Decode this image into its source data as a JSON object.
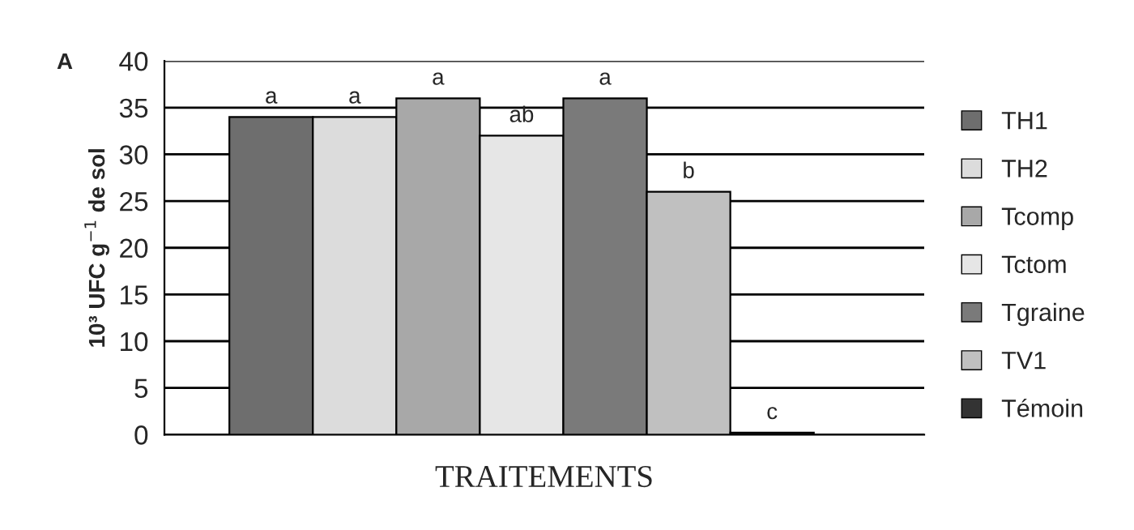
{
  "chart_data": {
    "type": "bar",
    "xlabel": "TRAITEMENTS",
    "ylabel": "10³ UFC g$^{−1}$ de sol",
    "annotations": [
      "A"
    ],
    "categories": [
      null
    ],
    "series": [
      {
        "name": "TH1",
        "color": "#6e6e6e",
        "values": [
          34
        ],
        "value_labels": [
          "a"
        ]
      },
      {
        "name": "TH2",
        "color": "#dcdcdc",
        "values": [
          34
        ],
        "value_labels": [
          "a"
        ]
      },
      {
        "name": "Tcomp",
        "color": "#a8a8a8",
        "values": [
          36
        ],
        "value_labels": [
          "a"
        ]
      },
      {
        "name": "Tctom",
        "color": "#e6e6e6",
        "values": [
          32
        ],
        "value_labels": [
          "ab"
        ]
      },
      {
        "name": "Tgraine",
        "color": "#7a7a7a",
        "values": [
          36
        ],
        "value_labels": [
          "a"
        ]
      },
      {
        "name": "TV1",
        "color": "#c0c0c0",
        "values": [
          26
        ],
        "value_labels": [
          "b"
        ]
      },
      {
        "name": "Témoin",
        "color": "#333333",
        "values": [
          0.2
        ],
        "value_labels": [
          "c"
        ]
      }
    ],
    "ylim": [
      0,
      40
    ],
    "yticks": [
      0,
      5,
      10,
      15,
      20,
      25,
      30,
      35,
      40
    ],
    "grid": "y",
    "legend": "right"
  }
}
